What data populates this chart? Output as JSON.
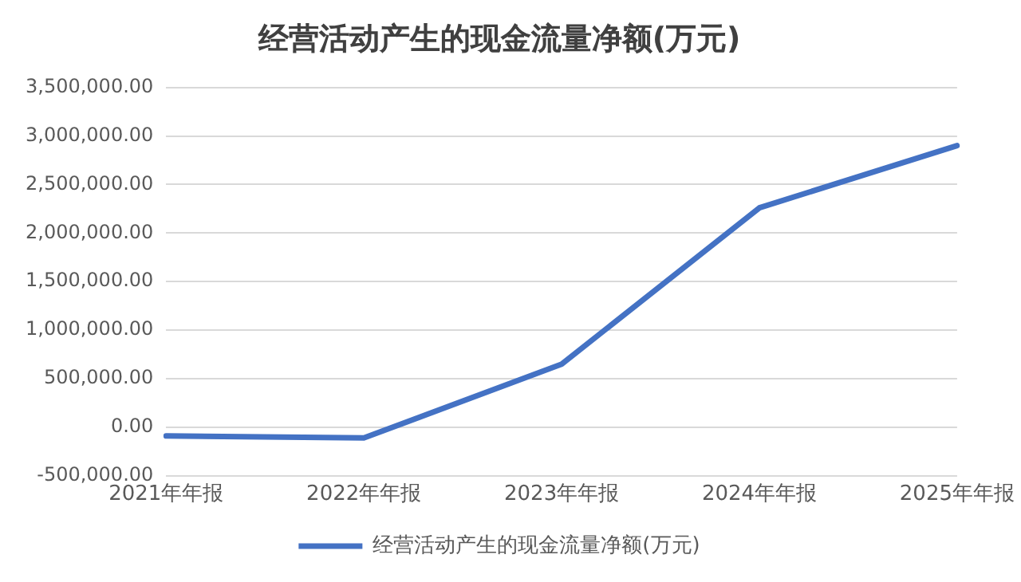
{
  "chart_data": {
    "type": "line",
    "title": "经营活动产生的现金流量净额(万元)",
    "categories": [
      "2021年年报",
      "2022年年报",
      "2023年年报",
      "2024年年报",
      "2025年年报"
    ],
    "series": [
      {
        "name": "经营活动产生的现金流量净额(万元)",
        "color": "#4472c4",
        "values": [
          -90000,
          -110000,
          650000,
          2260000,
          2900000
        ]
      }
    ],
    "ylim": [
      -500000,
      3500000
    ],
    "yticks": [
      {
        "value": -500000,
        "label": "-500,000.00"
      },
      {
        "value": 0,
        "label": "0.00"
      },
      {
        "value": 500000,
        "label": "500,000.00"
      },
      {
        "value": 1000000,
        "label": "1,000,000.00"
      },
      {
        "value": 1500000,
        "label": "1,500,000.00"
      },
      {
        "value": 2000000,
        "label": "2,000,000.00"
      },
      {
        "value": 2500000,
        "label": "2,500,000.00"
      },
      {
        "value": 3000000,
        "label": "3,000,000.00"
      },
      {
        "value": 3500000,
        "label": "3,500,000.00"
      }
    ],
    "grid": "y",
    "legend": "bottom",
    "marker": "none",
    "line_style": "solid"
  }
}
